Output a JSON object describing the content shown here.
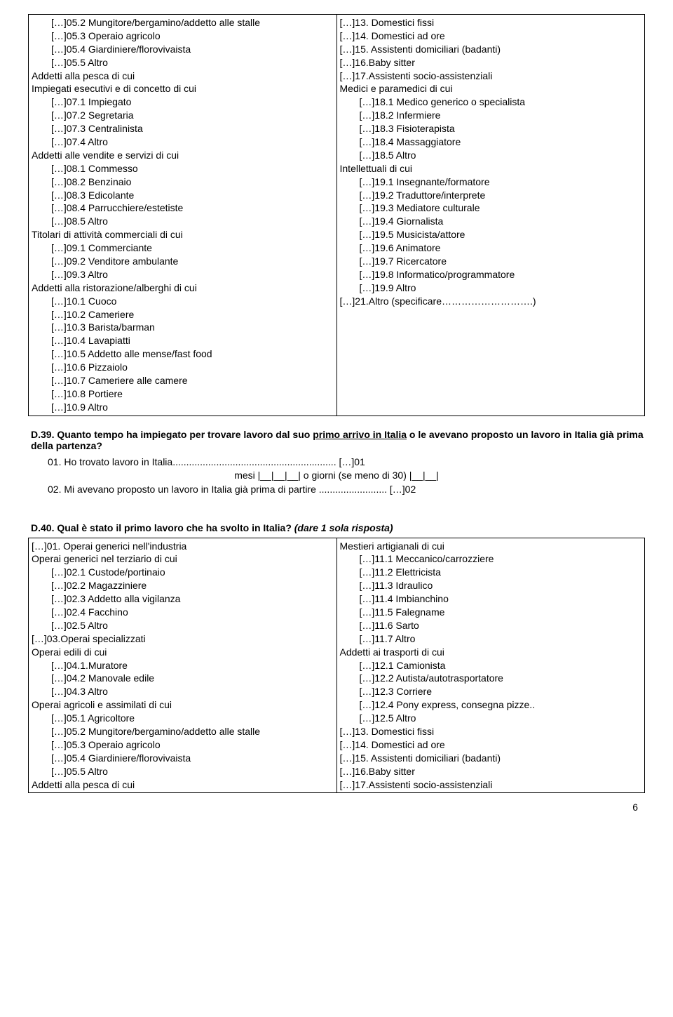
{
  "topSection": {
    "left": [
      {
        "t": "[…]05.2 Mungitore/bergamino/addetto alle stalle",
        "sub": true
      },
      {
        "t": "[…]05.3 Operaio agricolo",
        "sub": true
      },
      {
        "t": "[…]05.4 Giardiniere/florovivaista",
        "sub": true
      },
      {
        "t": "[…]05.5 Altro",
        "sub": true
      },
      {
        "t": "Addetti alla pesca di cui",
        "sub": false
      },
      {
        "t": "Impiegati esecutivi e di concetto di cui",
        "sub": false
      },
      {
        "t": "[…]07.1 Impiegato",
        "sub": true
      },
      {
        "t": "[…]07.2 Segretaria",
        "sub": true
      },
      {
        "t": "[…]07.3 Centralinista",
        "sub": true
      },
      {
        "t": "[…]07.4 Altro",
        "sub": true
      },
      {
        "t": "Addetti alle vendite e servizi di cui",
        "sub": false
      },
      {
        "t": "[…]08.1 Commesso",
        "sub": true
      },
      {
        "t": "[…]08.2 Benzinaio",
        "sub": true
      },
      {
        "t": "[…]08.3 Edicolante",
        "sub": true
      },
      {
        "t": "[…]08.4 Parrucchiere/estetiste",
        "sub": true
      },
      {
        "t": "[…]08.5 Altro",
        "sub": true
      },
      {
        "t": "Titolari di attività commerciali di cui",
        "sub": false
      },
      {
        "t": "[…]09.1 Commerciante",
        "sub": true
      },
      {
        "t": "[…]09.2 Venditore ambulante",
        "sub": true
      },
      {
        "t": "[…]09.3 Altro",
        "sub": true
      },
      {
        "t": "Addetti alla ristorazione/alberghi di cui",
        "sub": false
      },
      {
        "t": "[…]10.1 Cuoco",
        "sub": true
      },
      {
        "t": "[…]10.2 Cameriere",
        "sub": true
      },
      {
        "t": "[…]10.3 Barista/barman",
        "sub": true
      },
      {
        "t": "[…]10.4 Lavapiatti",
        "sub": true
      },
      {
        "t": "[…]10.5 Addetto alle mense/fast food",
        "sub": true
      },
      {
        "t": "[…]10.6 Pizzaiolo",
        "sub": true
      },
      {
        "t": "[…]10.7 Cameriere alle camere",
        "sub": true
      },
      {
        "t": "[…]10.8 Portiere",
        "sub": true
      },
      {
        "t": "[…]10.9 Altro",
        "sub": true
      }
    ],
    "right": [
      {
        "t": "[…]13. Domestici fissi",
        "sub": false
      },
      {
        "t": "[…]14. Domestici ad ore",
        "sub": false
      },
      {
        "t": "[…]15. Assistenti domiciliari (badanti)",
        "sub": false
      },
      {
        "t": "[…]16.Baby sitter",
        "sub": false
      },
      {
        "t": "[…]17.Assistenti socio-assistenziali",
        "sub": false
      },
      {
        "t": "Medici e paramedici di cui",
        "sub": false
      },
      {
        "t": "[…]18.1 Medico generico o specialista",
        "sub": true
      },
      {
        "t": "[…]18.2 Infermiere",
        "sub": true
      },
      {
        "t": "[…]18.3 Fisioterapista",
        "sub": true
      },
      {
        "t": "[…]18.4 Massaggiatore",
        "sub": true
      },
      {
        "t": "[…]18.5 Altro",
        "sub": true
      },
      {
        "t": "Intellettuali di cui",
        "sub": false
      },
      {
        "t": "[…]19.1 Insegnante/formatore",
        "sub": true
      },
      {
        "t": "[…]19.2 Traduttore/interprete",
        "sub": true
      },
      {
        "t": "[…]19.3 Mediatore culturale",
        "sub": true
      },
      {
        "t": "[…]19.4 Giornalista",
        "sub": true
      },
      {
        "t": "[…]19.5 Musicista/attore",
        "sub": true
      },
      {
        "t": "[…]19.6 Animatore",
        "sub": true
      },
      {
        "t": "[…]19.7 Ricercatore",
        "sub": true
      },
      {
        "t": "[…]19.8 Informatico/programmatore",
        "sub": true
      },
      {
        "t": "[…]19.9 Altro",
        "sub": true
      },
      {
        "t": "[…]21.Altro (specificare……………………….)",
        "sub": false
      }
    ]
  },
  "d39": {
    "title_pre": "D.39. Quanto tempo ha impiegato per trovare lavoro dal suo ",
    "title_under": "primo arrivo in Italia",
    "title_post": " o le avevano proposto un lavoro in Italia già prima della partenza?",
    "line1": "01. Ho trovato lavoro in Italia............................................................ […]01",
    "line2": "mesi |__|__|__|    o giorni (se meno di 30) |__|__|",
    "line3": "02. Mi avevano proposto un lavoro in Italia già prima di partire ......................... […]02"
  },
  "d40": {
    "title_pre": "D.40. Qual è stato il primo lavoro che ha svolto in Italia?",
    "title_italic": " (dare 1 sola risposta)",
    "left": [
      {
        "t": "[…]01. Operai generici nell'industria",
        "sub": false
      },
      {
        "t": "Operai generici nel terziario di cui",
        "sub": false
      },
      {
        "t": "[…]02.1 Custode/portinaio",
        "sub": true
      },
      {
        "t": "[…]02.2 Magazziniere",
        "sub": true
      },
      {
        "t": "[…]02.3 Addetto alla vigilanza",
        "sub": true
      },
      {
        "t": "[…]02.4 Facchino",
        "sub": true
      },
      {
        "t": "[…]02.5 Altro",
        "sub": true
      },
      {
        "t": "[…]03.Operai specializzati",
        "sub": false
      },
      {
        "t": "Operai edili di cui",
        "sub": false
      },
      {
        "t": "[…]04.1.Muratore",
        "sub": true
      },
      {
        "t": "[…]04.2 Manovale edile",
        "sub": true
      },
      {
        "t": "[…]04.3 Altro",
        "sub": true
      },
      {
        "t": "Operai agricoli e assimilati di cui",
        "sub": false
      },
      {
        "t": "[…]05.1 Agricoltore",
        "sub": true
      },
      {
        "t": "[…]05.2 Mungitore/bergamino/addetto alle stalle",
        "sub": true
      },
      {
        "t": "[…]05.3 Operaio agricolo",
        "sub": true
      },
      {
        "t": "[…]05.4 Giardiniere/florovivaista",
        "sub": true
      },
      {
        "t": "[…]05.5 Altro",
        "sub": true
      },
      {
        "t": "Addetti alla pesca di cui",
        "sub": false
      }
    ],
    "right": [
      {
        "t": "Mestieri artigianali di cui",
        "sub": false
      },
      {
        "t": "[…]11.1 Meccanico/carrozziere",
        "sub": true
      },
      {
        "t": "[…]11.2 Elettricista",
        "sub": true
      },
      {
        "t": "[…]11.3 Idraulico",
        "sub": true
      },
      {
        "t": "[…]11.4 Imbianchino",
        "sub": true
      },
      {
        "t": "[…]11.5 Falegname",
        "sub": true
      },
      {
        "t": " […]11.6 Sarto",
        "sub": true
      },
      {
        "t": "[…]11.7 Altro",
        "sub": true
      },
      {
        "t": "Addetti ai trasporti di cui",
        "sub": false
      },
      {
        "t": "[…]12.1 Camionista",
        "sub": true
      },
      {
        "t": "[…]12.2 Autista/autotrasportatore",
        "sub": true
      },
      {
        "t": "[…]12.3 Corriere",
        "sub": true
      },
      {
        "t": "[…]12.4 Pony express, consegna pizze..",
        "sub": true
      },
      {
        "t": "[…]12.5 Altro",
        "sub": true
      },
      {
        "t": "[…]13. Domestici fissi",
        "sub": false
      },
      {
        "t": "[…]14. Domestici ad ore",
        "sub": false
      },
      {
        "t": "[…]15. Assistenti domiciliari (badanti)",
        "sub": false
      },
      {
        "t": "[…]16.Baby sitter",
        "sub": false
      },
      {
        "t": "[…]17.Assistenti socio-assistenziali",
        "sub": false
      }
    ]
  },
  "pageNumber": "6"
}
